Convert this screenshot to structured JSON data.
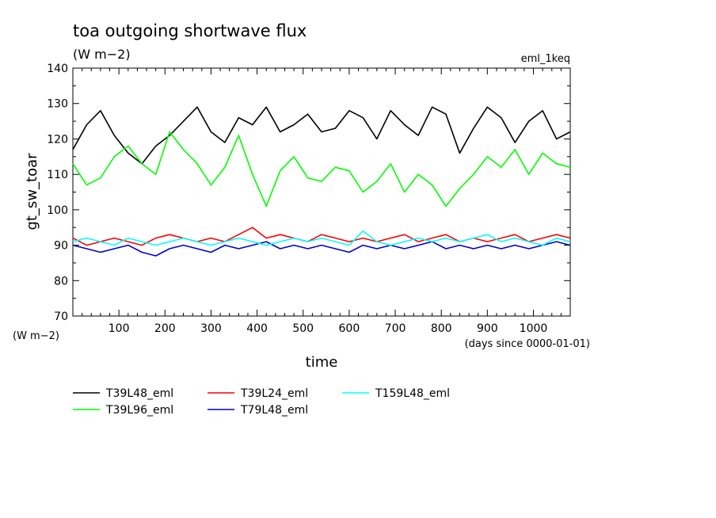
{
  "header": {
    "title": "toa outgoing shortwave flux",
    "units": "(W m−2)",
    "experiment": "eml_1keq"
  },
  "axes": {
    "ylabel": "gt_sw_toar",
    "ylabel_units": "(W m−2)",
    "xlabel": "time",
    "xlabel_units": "(days since 0000-01-01)"
  },
  "chart_data": {
    "type": "line",
    "title": "toa outgoing shortwave flux",
    "subtitle": "(W m−2)",
    "xlabel": "time",
    "ylabel": "gt_sw_toar",
    "xlim": [
      0,
      1080
    ],
    "ylim": [
      70,
      140
    ],
    "x_ticks": [
      100,
      200,
      300,
      400,
      500,
      600,
      700,
      800,
      900,
      1000
    ],
    "y_ticks": [
      70,
      80,
      90,
      100,
      110,
      120,
      130,
      140
    ],
    "grid": false,
    "legend_position": "bottom",
    "x": [
      0,
      30,
      60,
      90,
      120,
      150,
      180,
      210,
      240,
      270,
      300,
      330,
      360,
      390,
      420,
      450,
      480,
      510,
      540,
      570,
      600,
      630,
      660,
      690,
      720,
      750,
      780,
      810,
      840,
      870,
      900,
      930,
      960,
      990,
      1020,
      1050,
      1080
    ],
    "series": [
      {
        "name": "T39L48_eml",
        "color": "#000000",
        "values": [
          117,
          124,
          128,
          121,
          116,
          113,
          118,
          121,
          125,
          129,
          122,
          119,
          126,
          124,
          129,
          122,
          124,
          127,
          122,
          123,
          128,
          126,
          120,
          128,
          124,
          121,
          129,
          127,
          116,
          123,
          129,
          126,
          119,
          125,
          128,
          120,
          122
        ]
      },
      {
        "name": "T39L96_eml",
        "color": "#00ff00",
        "values": [
          113,
          107,
          109,
          115,
          118,
          113,
          110,
          122,
          117,
          113,
          107,
          112,
          121,
          110,
          101,
          111,
          115,
          109,
          108,
          112,
          111,
          105,
          108,
          113,
          105,
          110,
          107,
          101,
          106,
          110,
          115,
          112,
          117,
          110,
          116,
          113,
          112
        ]
      },
      {
        "name": "T39L24_eml",
        "color": "#ff0000",
        "values": [
          92,
          90,
          91,
          92,
          91,
          90,
          92,
          93,
          92,
          91,
          92,
          91,
          93,
          95,
          92,
          93,
          92,
          91,
          93,
          92,
          91,
          92,
          91,
          92,
          93,
          91,
          92,
          93,
          91,
          92,
          91,
          92,
          93,
          91,
          92,
          93,
          92
        ]
      },
      {
        "name": "T79L48_eml",
        "color": "#0000cc",
        "values": [
          90,
          89,
          88,
          89,
          90,
          88,
          87,
          89,
          90,
          89,
          88,
          90,
          89,
          90,
          91,
          89,
          90,
          89,
          90,
          89,
          88,
          90,
          89,
          90,
          89,
          90,
          91,
          89,
          90,
          89,
          90,
          89,
          90,
          89,
          90,
          91,
          90
        ]
      },
      {
        "name": "T159L48_eml",
        "color": "#00ffff",
        "values": [
          91,
          92,
          91,
          90,
          92,
          91,
          90,
          91,
          92,
          91,
          90,
          91,
          92,
          91,
          90,
          91,
          92,
          91,
          92,
          91,
          90,
          94,
          91,
          90,
          91,
          92,
          91,
          92,
          91,
          92,
          93,
          91,
          92,
          91,
          90,
          92,
          91
        ]
      }
    ]
  }
}
